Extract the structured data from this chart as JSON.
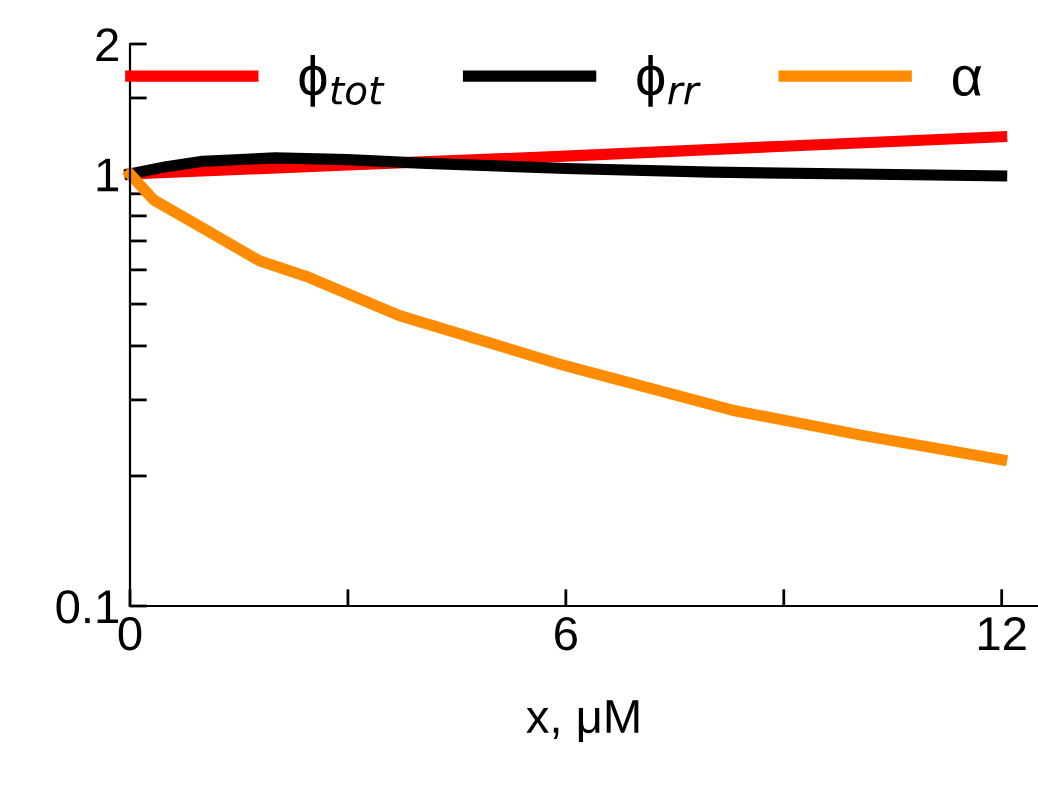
{
  "chart_data": {
    "type": "line",
    "xlabel": "x, μM",
    "xlim": [
      0,
      12.5
    ],
    "ylim": [
      0.1,
      2
    ],
    "log": "y",
    "xticks": [
      0,
      {
        "value": 3,
        "label": null
      },
      6,
      {
        "value": 9,
        "label": null
      },
      12
    ],
    "yticks": [
      0.1,
      {
        "value": 0.2,
        "label": null
      },
      {
        "value": 0.3,
        "label": null
      },
      {
        "value": 0.4,
        "label": null
      },
      {
        "value": 0.5,
        "label": null
      },
      {
        "value": 0.6,
        "label": null
      },
      {
        "value": 0.7,
        "label": null
      },
      {
        "value": 0.8,
        "label": null
      },
      {
        "value": 0.9,
        "label": null
      },
      1,
      {
        "value": 1.5,
        "label": null
      },
      2
    ],
    "grid": false,
    "legend": "top",
    "marker": "none",
    "line_style": "solid",
    "series": [
      {
        "name": "ϕ$_{tot}$",
        "color": "#ff0000",
        "x": [
          0,
          3,
          6,
          9,
          12
        ],
        "values": [
          1,
          1.05,
          1.1,
          1.16,
          1.22
        ]
      },
      {
        "name": "ϕ$_{rr}$",
        "color": "#000000",
        "x": [
          0,
          0.5,
          1,
          2,
          3,
          4,
          6,
          8,
          10,
          12
        ],
        "values": [
          1,
          1.04,
          1.07,
          1.09,
          1.08,
          1.06,
          1.03,
          1.01,
          1.0,
          0.99
        ]
      },
      {
        "name": "α",
        "color": "#ff8c00",
        "x": [
          0,
          0.33,
          1,
          1.78,
          2.42,
          3.71,
          5.99,
          8.29,
          10.1,
          12
        ],
        "values": [
          1,
          0.87,
          0.75,
          0.63,
          0.58,
          0.47,
          0.36,
          0.284,
          0.248,
          0.218
        ]
      }
    ]
  }
}
